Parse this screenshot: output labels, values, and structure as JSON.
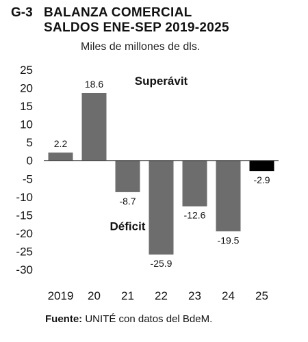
{
  "header": {
    "code": "G-3",
    "title_line1": "BALANZA COMERCIAL",
    "title_line2": "SALDOS ENE-SEP 2019-2025",
    "subtitle": "Miles de millones de dls."
  },
  "source": {
    "label": "Fuente:",
    "text": "UNITÉ con datos del BdeM."
  },
  "colors": {
    "bar": "#6d6d6d",
    "bar_highlight": "#000000",
    "zero_line": "#333333"
  },
  "chart_data": {
    "type": "bar",
    "title": "BALANZA COMERCIAL SALDOS ENE-SEP 2019-2025",
    "categories": [
      "2019",
      "20",
      "21",
      "22",
      "23",
      "24",
      "25"
    ],
    "values": [
      2.2,
      18.6,
      -8.7,
      -25.9,
      -12.6,
      -19.5,
      -2.9
    ],
    "value_labels": [
      "2.2",
      "18.6",
      "-8.7",
      "-25.9",
      "-12.6",
      "-19.5",
      "-2.9"
    ],
    "highlight_index": 6,
    "ylim": [
      -30,
      25
    ],
    "yticks": [
      25,
      20,
      15,
      10,
      5,
      0,
      -5,
      -10,
      -15,
      -20,
      -25,
      -30
    ],
    "ytick_labels": [
      "25",
      "20",
      "15",
      "10",
      "5",
      "0",
      "-5",
      "-10",
      "-15",
      "-20",
      "-25",
      "-30"
    ],
    "grid": false,
    "annotations": [
      {
        "text": "Superávit",
        "x": "22",
        "y": 22
      },
      {
        "text": "Déficit",
        "x": "21",
        "y": -18
      }
    ]
  }
}
